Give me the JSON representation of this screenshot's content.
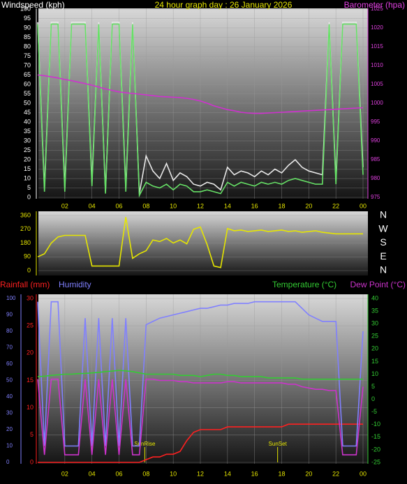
{
  "chart_data": [
    {
      "type": "line",
      "title": "24 hour graph day : 26 January 2026",
      "ylabel": "Windspeed (kph)",
      "y2label": "Barometer (hpa)",
      "x": [
        0,
        0.5,
        1,
        1.5,
        2,
        2.5,
        3,
        3.5,
        4,
        4.5,
        5,
        5.5,
        6,
        6.5,
        7,
        7.5,
        8,
        8.5,
        9,
        9.5,
        10,
        10.5,
        11,
        11.5,
        12,
        12.5,
        13,
        13.5,
        14,
        14.5,
        15,
        15.5,
        16,
        16.5,
        17,
        17.5,
        18,
        18.5,
        19,
        19.5,
        20,
        20.5,
        21,
        21.5,
        22,
        22.5,
        23,
        23.5,
        24
      ],
      "xlim": [
        0,
        24
      ],
      "xticks": [
        {
          "value": 2,
          "label": "02"
        },
        {
          "value": 4,
          "label": "04"
        },
        {
          "value": 6,
          "label": "06"
        },
        {
          "value": 8,
          "label": "08"
        },
        10,
        12,
        14,
        16,
        18,
        20,
        22,
        {
          "value": 24,
          "label": "00"
        }
      ],
      "ylim": [
        0,
        100
      ],
      "yticks": [
        0,
        5,
        10,
        15,
        20,
        25,
        30,
        35,
        40,
        45,
        50,
        55,
        60,
        65,
        70,
        75,
        80,
        85,
        90,
        95,
        100
      ],
      "y2lim": [
        975,
        1025
      ],
      "y2ticks": [
        975,
        980,
        985,
        990,
        995,
        1000,
        1005,
        1010,
        1015,
        1020,
        1025
      ],
      "grid": true,
      "series": [
        {
          "color": "#e8e8e8",
          "values": [
            93,
            5,
            93,
            93,
            5,
            93,
            93,
            93,
            8,
            93,
            3,
            93,
            93,
            5,
            93,
            2,
            22,
            14,
            10,
            18,
            9,
            13,
            11,
            7,
            6,
            8,
            7,
            4,
            16,
            12,
            14,
            13,
            11,
            14,
            12,
            15,
            13,
            17,
            20,
            16,
            14,
            13,
            12,
            93,
            9,
            93,
            93,
            93,
            16
          ]
        },
        {
          "color": "#66e066",
          "values": [
            92,
            3,
            92,
            92,
            3,
            92,
            92,
            92,
            6,
            92,
            2,
            92,
            92,
            3,
            92,
            1,
            8,
            6,
            5,
            7,
            4,
            7,
            6,
            3,
            3,
            4,
            3,
            2,
            8,
            6,
            8,
            7,
            6,
            8,
            7,
            8,
            7,
            9,
            10,
            9,
            8,
            7,
            7,
            92,
            7,
            92,
            92,
            92,
            12
          ]
        },
        {
          "color": "#d030d0",
          "axis": "y2",
          "values": [
            1007.5,
            1007.3,
            1007,
            1006.7,
            1006.3,
            1006,
            1005.6,
            1005.2,
            1004.8,
            1004.3,
            1003.8,
            1003.4,
            1003,
            1002.8,
            1002.6,
            1002.4,
            1002.2,
            1002,
            1001.8,
            1001.7,
            1001.6,
            1001.5,
            1001.3,
            1001,
            1000.6,
            1000,
            999.3,
            998.8,
            998.3,
            998,
            997.6,
            997.4,
            997.3,
            997.3,
            997.4,
            997.5,
            997.6,
            997.7,
            997.8,
            997.9,
            998,
            998.1,
            998.2,
            998.3,
            998.4,
            998.5,
            998.6,
            998.7,
            998.8
          ]
        }
      ]
    },
    {
      "type": "line",
      "x": [
        0,
        0.5,
        1,
        1.5,
        2,
        2.5,
        3,
        3.5,
        4,
        4.5,
        5,
        5.5,
        6,
        6.5,
        7,
        7.5,
        8,
        8.5,
        9,
        9.5,
        10,
        10.5,
        11,
        11.5,
        12,
        12.5,
        13,
        13.5,
        14,
        14.5,
        15,
        15.5,
        16,
        16.5,
        17,
        17.5,
        18,
        18.5,
        19,
        19.5,
        20,
        20.5,
        21,
        21.5,
        22,
        22.5,
        23,
        23.5,
        24
      ],
      "xlim": [
        0,
        24
      ],
      "ylim": [
        0,
        360
      ],
      "yticks": [
        0,
        90,
        180,
        270,
        360
      ],
      "y2lim": [
        0,
        360
      ],
      "y2ticks": [
        {
          "value": 360,
          "label": "N"
        },
        {
          "value": 270,
          "label": "W"
        },
        {
          "value": 180,
          "label": "S"
        },
        {
          "value": 90,
          "label": "E"
        },
        {
          "value": 0,
          "label": "N"
        }
      ],
      "grid": true,
      "series": [
        {
          "color": "#e6e600",
          "values": [
            90,
            110,
            180,
            220,
            230,
            230,
            230,
            230,
            30,
            30,
            30,
            30,
            30,
            350,
            80,
            110,
            130,
            200,
            190,
            210,
            180,
            200,
            175,
            270,
            285,
            170,
            30,
            20,
            275,
            260,
            265,
            255,
            260,
            265,
            255,
            260,
            265,
            255,
            260,
            250,
            255,
            260,
            250,
            245,
            240,
            240,
            240,
            240,
            240
          ]
        }
      ]
    },
    {
      "type": "line",
      "x": [
        0,
        0.5,
        1,
        1.5,
        2,
        2.5,
        3,
        3.5,
        4,
        4.5,
        5,
        5.5,
        6,
        6.5,
        7,
        7.5,
        8,
        8.5,
        9,
        9.5,
        10,
        10.5,
        11,
        11.5,
        12,
        12.5,
        13,
        13.5,
        14,
        14.5,
        15,
        15.5,
        16,
        16.5,
        17,
        17.5,
        18,
        18.5,
        19,
        19.5,
        20,
        20.5,
        21,
        21.5,
        22,
        22.5,
        23,
        23.5,
        24
      ],
      "xlim": [
        0,
        24
      ],
      "xticks": [
        {
          "value": 2,
          "label": "02"
        },
        {
          "value": 4,
          "label": "04"
        },
        {
          "value": 6,
          "label": "06"
        },
        {
          "value": 8,
          "label": "08"
        },
        10,
        12,
        14,
        16,
        18,
        20,
        22,
        {
          "value": 24,
          "label": "00"
        }
      ],
      "ylim": [
        0,
        30
      ],
      "yticks": [
        0,
        5,
        10,
        15,
        20,
        25,
        30
      ],
      "y3lim": [
        0,
        100
      ],
      "y3ticks": [
        0,
        10,
        20,
        30,
        40,
        50,
        60,
        70,
        80,
        90,
        100
      ],
      "y2lim": [
        -25,
        40
      ],
      "y2ticks": [
        -25,
        -20,
        -15,
        -10,
        -5,
        0,
        5,
        10,
        15,
        20,
        25,
        30,
        35,
        40
      ],
      "grid": true,
      "annotations": [
        {
          "text": "SunRise",
          "x": 7.9
        },
        {
          "text": "SunSet",
          "x": 17.7
        }
      ],
      "series": [
        {
          "name": "Rainfall (mm)",
          "color": "#ff2020",
          "values": [
            0,
            0,
            0,
            0,
            0,
            0,
            0,
            0,
            0,
            0,
            0,
            0,
            0,
            0,
            0,
            0,
            0.5,
            1,
            1,
            1.5,
            1.5,
            2,
            4,
            5.5,
            6,
            6,
            6,
            6,
            6.5,
            6.5,
            6.5,
            6.5,
            6.5,
            6.5,
            6.5,
            6.5,
            6.5,
            7,
            7,
            7,
            7,
            7,
            7,
            7,
            7,
            7,
            7,
            7,
            7
          ]
        },
        {
          "name": "Humidity",
          "color": "#8080ff",
          "axis": "y3",
          "values": [
            98,
            10,
            98,
            98,
            10,
            10,
            10,
            88,
            10,
            88,
            10,
            88,
            10,
            88,
            10,
            10,
            84,
            86,
            88,
            89,
            90,
            91,
            92,
            93,
            94,
            94,
            95,
            96,
            96,
            97,
            97,
            97,
            98,
            98,
            98,
            98,
            98,
            98,
            98,
            94,
            90,
            88,
            86,
            86,
            86,
            10,
            10,
            10,
            80
          ]
        },
        {
          "name": "Temperature (°C)",
          "color": "#33cc33",
          "axis": "y2",
          "values": [
            9,
            9.2,
            9.5,
            9.7,
            10,
            10,
            10.2,
            10.3,
            10.5,
            10.7,
            11,
            11.2,
            11.5,
            11.3,
            11,
            10.5,
            10,
            10,
            10,
            10,
            10,
            9.5,
            9.5,
            9.5,
            9,
            9.5,
            10,
            10,
            9.5,
            9.5,
            9,
            9,
            9,
            9,
            8.5,
            8.5,
            8.5,
            8.5,
            8.5,
            8,
            8,
            8,
            8,
            8,
            8,
            8,
            8,
            8,
            8
          ]
        },
        {
          "name": "Dew Point (°C)",
          "color": "#cc33cc",
          "axis": "y2",
          "values": [
            8,
            -22,
            8,
            8,
            -22,
            -22,
            -22,
            8,
            -22,
            8,
            -22,
            8,
            -22,
            8,
            -22,
            -22,
            8,
            8,
            7.5,
            7.5,
            7.5,
            7,
            7,
            6.5,
            6.5,
            6.5,
            6.5,
            6.5,
            7,
            7,
            6.5,
            6.5,
            6.5,
            6.5,
            6.5,
            6.5,
            6.5,
            6,
            6,
            5,
            4.5,
            4,
            4,
            3.5,
            3.5,
            -22,
            -22,
            -22,
            5
          ]
        }
      ]
    }
  ]
}
